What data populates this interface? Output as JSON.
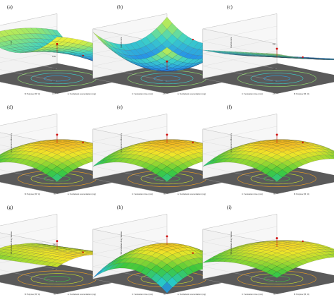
{
  "chart_data": [
    {
      "panel": "(a)",
      "type": "surface-3d",
      "shape": "saddle-valley",
      "colormap": "blue-green",
      "xlabel": "B: Polymer (B, %)",
      "ylabel": "A: Surfactant concentration (mg)",
      "zlabel": "PDI",
      "z_ticks": [
        "0.14",
        "0.18",
        "0.22",
        "0.26",
        "0.3"
      ],
      "design_point": "above"
    },
    {
      "panel": "(b)",
      "type": "surface-3d",
      "shape": "bowl",
      "colormap": "blue-green",
      "xlabel": "C: Sonication time (min)",
      "ylabel": "A: Surfactant concentration (mg)",
      "zlabel": "Particle size",
      "z_ticks": [
        "100",
        "150",
        "200",
        "250",
        "300"
      ],
      "design_point": "above"
    },
    {
      "panel": "(c)",
      "type": "surface-3d",
      "shape": "tilted-plane",
      "colormap": "blue-green",
      "xlabel": "C: Sonication time (min)",
      "ylabel": "B: Polymer (B, %)",
      "zlabel": "Particle size",
      "z_ticks": [
        "100",
        "150",
        "200",
        "250",
        "300"
      ],
      "design_point": "above"
    },
    {
      "panel": "(d)",
      "type": "surface-3d",
      "shape": "dome",
      "colormap": "red-yellow-green",
      "xlabel": "B: Polymer (B, %)",
      "ylabel": "A: Surfactant concentration (mg)",
      "zlabel": "Entrapment efficiency",
      "z_ticks": [
        "60",
        "70",
        "80",
        "90",
        "100"
      ],
      "design_point": "above"
    },
    {
      "panel": "(e)",
      "type": "surface-3d",
      "shape": "dome",
      "colormap": "red-yellow-green",
      "xlabel": "C: Sonication time (min)",
      "ylabel": "A: Surfactant concentration (mg)",
      "zlabel": "Entrapment efficiency",
      "z_ticks": [
        "60",
        "70",
        "80",
        "90",
        "100"
      ],
      "design_point": "above"
    },
    {
      "panel": "(f)",
      "type": "surface-3d",
      "shape": "dome",
      "colormap": "red-yellow-green",
      "xlabel": "C: Sonication time (min)",
      "ylabel": "B: Polymer (B, %)",
      "zlabel": "Entrapment efficiency",
      "z_ticks": [
        "60",
        "70",
        "80",
        "90",
        "100"
      ],
      "design_point": "above"
    },
    {
      "panel": "(g)",
      "type": "surface-3d",
      "shape": "ridge",
      "colormap": "red-yellow-green",
      "xlabel": "B: Polymer (B, %)",
      "ylabel": "A: Surfactant concentration (mg)",
      "zlabel": "%Cumulative drug release",
      "z_ticks": [
        "60",
        "70",
        "80",
        "90",
        "100"
      ],
      "design_point": "above"
    },
    {
      "panel": "(h)",
      "type": "surface-3d",
      "shape": "dome-steep",
      "colormap": "red-yellow-green",
      "xlabel": "C: Sonication time (min)",
      "ylabel": "A: Surfactant concentration (mg)",
      "zlabel": "%Cumulative drug release",
      "z_ticks": [
        "60",
        "70",
        "80",
        "90",
        "100"
      ],
      "design_point": "above"
    },
    {
      "panel": "(i)",
      "type": "surface-3d",
      "shape": "dome-flat",
      "colormap": "red-yellow-green",
      "xlabel": "C: Sonication time (min)",
      "ylabel": "B: Polymer (B, %)",
      "zlabel": "%Cumulative drug release",
      "z_ticks": [
        "60",
        "70",
        "80",
        "90",
        "100"
      ],
      "design_point": "above"
    }
  ]
}
